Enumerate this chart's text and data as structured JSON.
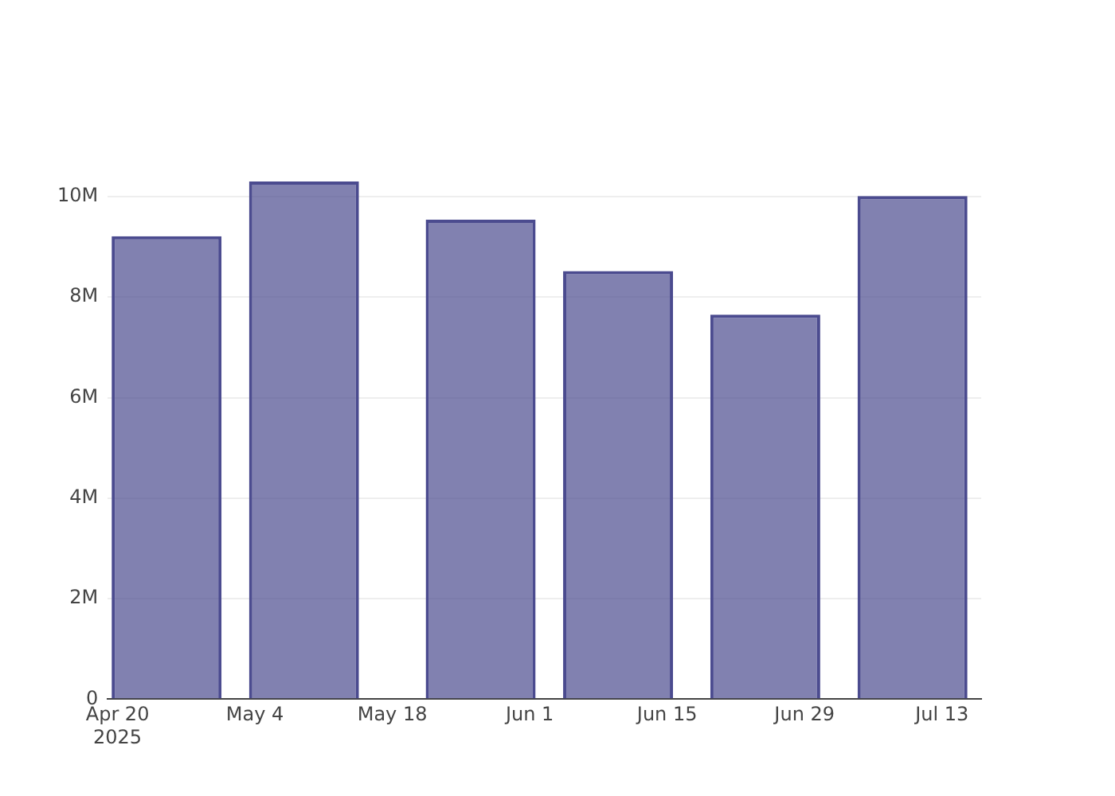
{
  "chart_data": {
    "type": "bar",
    "x": [
      "2025-04-25",
      "2025-05-09",
      "2025-05-27",
      "2025-06-10",
      "2025-06-25",
      "2025-07-10"
    ],
    "values": [
      9210000,
      10300000,
      9540000,
      8520000,
      7650000,
      10010000
    ],
    "color": "#4b4b8f",
    "xlim": [
      "2025-04-19",
      "2025-07-17"
    ],
    "xticks": [
      {
        "value": "2025-04-20",
        "label": "Apr 20\n2025"
      },
      {
        "value": "2025-05-04",
        "label": "May 4"
      },
      {
        "value": "2025-05-18",
        "label": "May 18"
      },
      {
        "value": "2025-06-01",
        "label": "Jun 1"
      },
      {
        "value": "2025-06-15",
        "label": "Jun 15"
      },
      {
        "value": "2025-06-29",
        "label": "Jun 29"
      },
      {
        "value": "2025-07-13",
        "label": "Jul 13"
      }
    ],
    "yticks": [
      {
        "value": 0,
        "label": "0"
      },
      {
        "value": 2000000,
        "label": "2M"
      },
      {
        "value": 4000000,
        "label": "4M"
      },
      {
        "value": 6000000,
        "label": "6M"
      },
      {
        "value": 8000000,
        "label": "8M"
      },
      {
        "value": 10000000,
        "label": "10M"
      }
    ],
    "ylim": [
      0,
      10300000
    ],
    "grid": "y"
  }
}
